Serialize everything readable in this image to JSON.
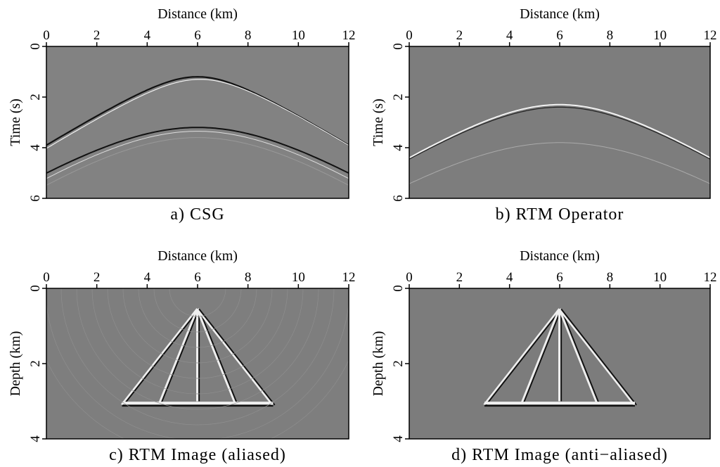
{
  "chart_data": [
    {
      "type": "image",
      "caption": "a) CSG",
      "xlabel": "Distance (km)",
      "ylabel": "Time (s)",
      "xlim": [
        0,
        12
      ],
      "ylim": [
        0,
        6
      ],
      "xticks": [
        0,
        2,
        4,
        6,
        8,
        10,
        12
      ],
      "yticks": [
        0,
        2,
        4,
        6
      ]
    },
    {
      "type": "image",
      "caption": "b) RTM Operator",
      "xlabel": "Distance (km)",
      "ylabel": "Time (s)",
      "xlim": [
        0,
        12
      ],
      "ylim": [
        0,
        6
      ],
      "xticks": [
        0,
        2,
        4,
        6,
        8,
        10,
        12
      ],
      "yticks": [
        0,
        2,
        4,
        6
      ]
    },
    {
      "type": "image",
      "caption": "c) RTM Image (aliased)",
      "xlabel": "Distance (km)",
      "ylabel": "Depth (km)",
      "xlim": [
        0,
        12
      ],
      "ylim": [
        0,
        4
      ],
      "xticks": [
        0,
        2,
        4,
        6,
        8,
        10,
        12
      ],
      "yticks": [
        0,
        2,
        4
      ]
    },
    {
      "type": "image",
      "caption": "d) RTM Image (anti−aliased)",
      "xlabel": "Distance (km)",
      "ylabel": "Depth (km)",
      "xlim": [
        0,
        12
      ],
      "ylim": [
        0,
        4
      ],
      "xticks": [
        0,
        2,
        4,
        6,
        8,
        10,
        12
      ],
      "yticks": [
        0,
        2,
        4
      ]
    }
  ]
}
